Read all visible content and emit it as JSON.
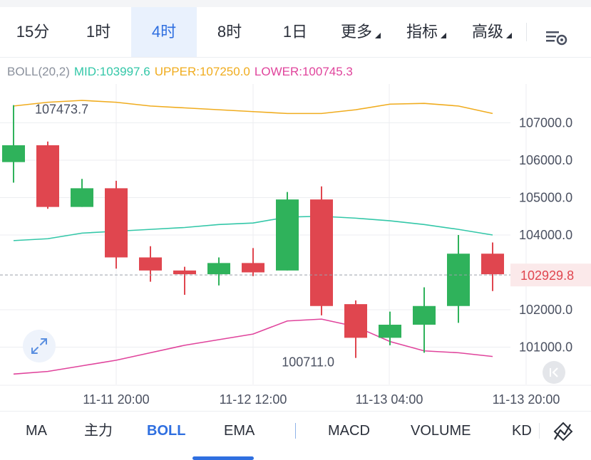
{
  "timeframe_tabs": [
    {
      "label": "15分",
      "active": false,
      "dropdown": false
    },
    {
      "label": "1时",
      "active": false,
      "dropdown": false
    },
    {
      "label": "4时",
      "active": true,
      "dropdown": false
    },
    {
      "label": "8时",
      "active": false,
      "dropdown": false
    },
    {
      "label": "1日",
      "active": false,
      "dropdown": false
    },
    {
      "label": "更多",
      "active": false,
      "dropdown": true
    },
    {
      "label": "指标",
      "active": false,
      "dropdown": true
    },
    {
      "label": "高级",
      "active": false,
      "dropdown": true
    }
  ],
  "legend": {
    "name": "BOLL(20,2)",
    "mid": "MID:103997.6",
    "upper": "UPPER:107250.0",
    "lower": "LOWER:100745.3"
  },
  "colors": {
    "accent": "#2f6fe0",
    "up": "#2fb25b",
    "down": "#e0464f",
    "mid_line": "#33c7a8",
    "upper_line": "#f0ac1e",
    "lower_line": "#e0449c",
    "grid": "#eceef1"
  },
  "chart_data": {
    "type": "candlestick",
    "ylim": [
      100000,
      108000
    ],
    "y_ticks": [
      "107000.0",
      "106000.0",
      "105000.0",
      "104000.0",
      "102000.0",
      "101000.0"
    ],
    "y_tick_values": [
      107000,
      106000,
      105000,
      104000,
      102000,
      101000
    ],
    "x_ticks": [
      "11-11 20:00",
      "11-12 12:00",
      "11-13 04:00",
      "11-13 20:00"
    ],
    "x_tick_index": [
      2,
      6,
      10,
      14
    ],
    "last_price": "102929.8",
    "last_price_value": 102929.8,
    "high_label": "107473.7",
    "high_value": 107473.7,
    "high_index": 0,
    "low_label": "100711.0",
    "low_value": 100711.0,
    "low_index": 10,
    "candles": [
      {
        "open": 105950,
        "high": 107473.7,
        "low": 105400,
        "close": 106400
      },
      {
        "open": 106400,
        "high": 106500,
        "low": 104700,
        "close": 104750
      },
      {
        "open": 104750,
        "high": 105500,
        "low": 104750,
        "close": 105250
      },
      {
        "open": 105250,
        "high": 105450,
        "low": 103100,
        "close": 103400
      },
      {
        "open": 103400,
        "high": 103700,
        "low": 102750,
        "close": 103050
      },
      {
        "open": 103050,
        "high": 103150,
        "low": 102400,
        "close": 102950
      },
      {
        "open": 102950,
        "high": 103400,
        "low": 102650,
        "close": 103250
      },
      {
        "open": 103250,
        "high": 103650,
        "low": 102900,
        "close": 103000
      },
      {
        "open": 103050,
        "high": 105150,
        "low": 103050,
        "close": 104950
      },
      {
        "open": 104950,
        "high": 105300,
        "low": 101850,
        "close": 102100
      },
      {
        "open": 102150,
        "high": 102250,
        "low": 100711.0,
        "close": 101250
      },
      {
        "open": 101250,
        "high": 101950,
        "low": 101050,
        "close": 101600
      },
      {
        "open": 101600,
        "high": 102600,
        "low": 100850,
        "close": 102100
      },
      {
        "open": 102100,
        "high": 104000,
        "low": 101650,
        "close": 103500
      },
      {
        "open": 103500,
        "high": 103800,
        "low": 102500,
        "close": 102950
      }
    ],
    "series": [
      {
        "name": "UPPER",
        "values": [
          107450,
          107550,
          107600,
          107550,
          107450,
          107400,
          107350,
          107300,
          107250,
          107250,
          107350,
          107500,
          107520,
          107450,
          107250
        ]
      },
      {
        "name": "MID",
        "values": [
          103850,
          103900,
          104050,
          104100,
          104150,
          104200,
          104280,
          104320,
          104480,
          104500,
          104450,
          104380,
          104280,
          104150,
          104000
        ]
      },
      {
        "name": "LOWER",
        "values": [
          100280,
          100350,
          100500,
          100650,
          100850,
          101050,
          101200,
          101350,
          101700,
          101750,
          101550,
          101150,
          100900,
          100850,
          100750
        ]
      }
    ]
  },
  "indicator_tabs": [
    {
      "label": "MA",
      "active": false
    },
    {
      "label": "主力",
      "active": false
    },
    {
      "label": "BOLL",
      "active": true
    },
    {
      "label": "EMA",
      "active": false
    },
    {
      "label": "MACD",
      "active": false
    },
    {
      "label": "VOLUME",
      "active": false
    },
    {
      "label": "KD",
      "active": false
    }
  ]
}
